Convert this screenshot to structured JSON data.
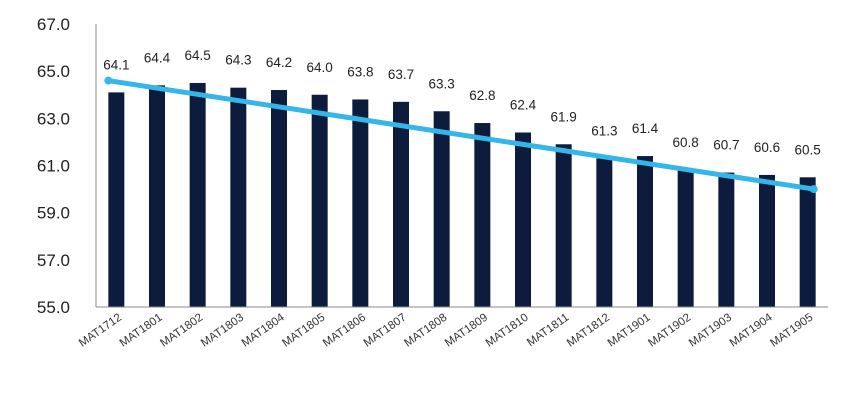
{
  "chart_data": {
    "type": "bar",
    "title": "",
    "xlabel": "",
    "ylabel": "",
    "ylim": [
      55.0,
      67.0
    ],
    "yticks": [
      "55.0",
      "57.0",
      "59.0",
      "61.0",
      "63.0",
      "65.0",
      "67.0"
    ],
    "grid": false,
    "legend": "none",
    "categories": [
      "MAT1712",
      "MAT1801",
      "MAT1802",
      "MAT1803",
      "MAT1804",
      "MAT1805",
      "MAT1806",
      "MAT1807",
      "MAT1808",
      "MAT1809",
      "MAT1810",
      "MAT1811",
      "MAT1812",
      "MAT1901",
      "MAT1902",
      "MAT1903",
      "MAT1904",
      "MAT1905"
    ],
    "values": [
      64.1,
      64.4,
      64.5,
      64.3,
      64.2,
      64.0,
      63.8,
      63.7,
      63.3,
      62.8,
      62.4,
      61.9,
      61.3,
      61.4,
      60.8,
      60.7,
      60.6,
      60.5
    ],
    "data_labels": [
      "64.1",
      "64.4",
      "64.5",
      "64.3",
      "64.2",
      "64.0",
      "63.8",
      "63.7",
      "63.3",
      "62.8",
      "62.4",
      "61.9",
      "61.3",
      "61.4",
      "60.8",
      "60.7",
      "60.6",
      "60.5"
    ],
    "trendline": {
      "type": "linear",
      "start": 64.6,
      "end": 60.0
    },
    "colors": {
      "bar": "#0d1b3d",
      "trend": "#35b6e8",
      "axis": "#888888"
    }
  }
}
